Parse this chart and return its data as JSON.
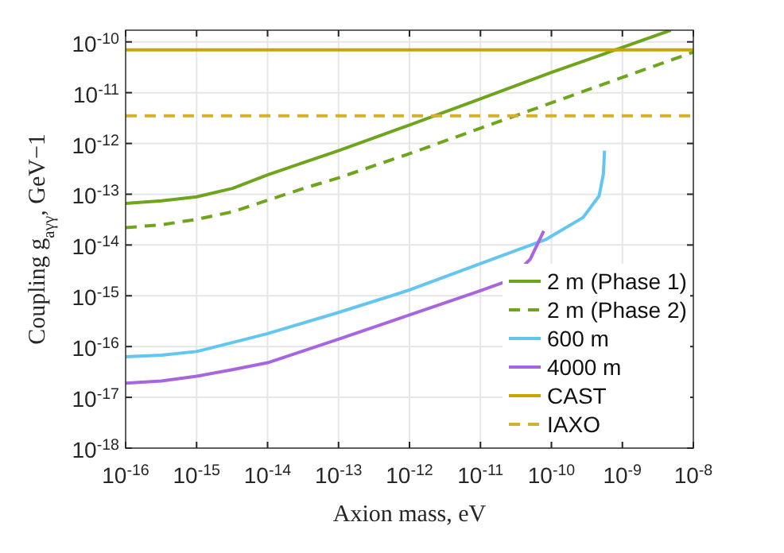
{
  "chart_data": {
    "type": "line",
    "xlabel": "Axion mass, eV",
    "ylabel": "Coupling g$_{aγγ}$, GeV−1",
    "log": "xy",
    "grid": true,
    "legend": "bottom right",
    "marker": "none",
    "xlim": [
      1e-16,
      1e-08
    ],
    "ylim": [
      1e-18,
      1.7e-10
    ],
    "xticks": [
      {
        "value": 1e-16,
        "label": "10$^{-16}$"
      },
      {
        "value": 1e-15,
        "label": "10$^{-15}$"
      },
      {
        "value": 1e-14,
        "label": "10$^{-14}$"
      },
      {
        "value": 1e-13,
        "label": "10$^{-13}$"
      },
      {
        "value": 1e-12,
        "label": "10$^{-12}$"
      },
      {
        "value": 1e-11,
        "label": "10$^{-11}$"
      },
      {
        "value": 1e-10,
        "label": "10$^{-10}$"
      },
      {
        "value": 1e-09,
        "label": "10$^{-9}$"
      },
      {
        "value": 1e-08,
        "label": "10$^{-8}$"
      }
    ],
    "yticks": [
      {
        "value": 1e-18,
        "label": "10$^{-18}$"
      },
      {
        "value": 1e-17,
        "label": "10$^{-17}$"
      },
      {
        "value": 1e-16,
        "label": "10$^{-16}$"
      },
      {
        "value": 1e-15,
        "label": "10$^{-15}$"
      },
      {
        "value": 1e-14,
        "label": "10$^{-14}$"
      },
      {
        "value": 1e-13,
        "label": "10$^{-13}$"
      },
      {
        "value": 1e-12,
        "label": "10$^{-12}$"
      },
      {
        "value": 1e-11,
        "label": "10$^{-11}$"
      },
      {
        "value": 1e-10,
        "label": "10$^{-10}$"
      }
    ],
    "series": [
      {
        "name": "2 m (Phase 1)",
        "color": "#6ea51c",
        "line_style": "solid",
        "x": [
          1e-16,
          3.2e-16,
          1e-15,
          3.2e-15,
          1e-14,
          3.2e-14,
          1e-13,
          1e-12,
          1e-11,
          1e-10,
          1e-09,
          4.8e-09
        ],
        "values": [
          6.6e-14,
          7.4e-14,
          8.9e-14,
          1.3e-13,
          2.4e-13,
          4.2e-13,
          7.2e-13,
          2.3e-12,
          7.6e-12,
          2.5e-11,
          7.8e-11,
          1.7e-10
        ]
      },
      {
        "name": "2 m (Phase 2)",
        "color": "#6ea51c",
        "line_style": "dashed",
        "x": [
          1e-16,
          3.2e-16,
          1e-15,
          3.2e-15,
          1e-14,
          3.2e-14,
          1e-13,
          1e-12,
          1e-11,
          1e-10,
          1e-09,
          1e-08
        ],
        "values": [
          2.2e-14,
          2.5e-14,
          3.2e-14,
          4.5e-14,
          7.6e-14,
          1.3e-13,
          2.1e-13,
          6.3e-13,
          2e-12,
          6.3e-12,
          2e-11,
          6.3e-11
        ]
      },
      {
        "name": "600 m",
        "color": "#62c6f0",
        "line_style": "solid",
        "x": [
          1e-16,
          3.2e-16,
          1e-15,
          3.2e-15,
          1e-14,
          1e-13,
          1e-12,
          9.1e-12,
          8.5e-11,
          2.8e-10,
          4.7e-10,
          5.4e-10,
          5.6e-10
        ],
        "values": [
          6.3e-17,
          6.8e-17,
          8e-17,
          1.2e-16,
          1.8e-16,
          4.7e-16,
          1.3e-15,
          4.1e-15,
          1.3e-14,
          3.5e-14,
          9.3e-14,
          2.5e-13,
          7.2e-13
        ]
      },
      {
        "name": "4000 m",
        "color": "#a865e0",
        "line_style": "solid",
        "x": [
          1e-16,
          3.2e-16,
          1e-15,
          3.2e-15,
          1e-14,
          1e-13,
          1e-12,
          9.1e-12,
          2.5e-11,
          5e-11,
          7.8e-11
        ],
        "values": [
          1.9e-17,
          2.1e-17,
          2.6e-17,
          3.5e-17,
          4.8e-17,
          1.4e-16,
          4.2e-16,
          1.2e-15,
          2e-15,
          5.2e-15,
          1.9e-14
        ]
      },
      {
        "name": "CAST",
        "color": "#c8a600",
        "line_style": "solid",
        "x": [
          1e-16,
          1e-08
        ],
        "values": [
          7e-11,
          7e-11
        ]
      },
      {
        "name": "IAXO",
        "color": "#d4b030",
        "line_style": "dashed",
        "x": [
          1e-16,
          1e-08
        ],
        "values": [
          3.5e-12,
          3.5e-12
        ]
      }
    ]
  }
}
